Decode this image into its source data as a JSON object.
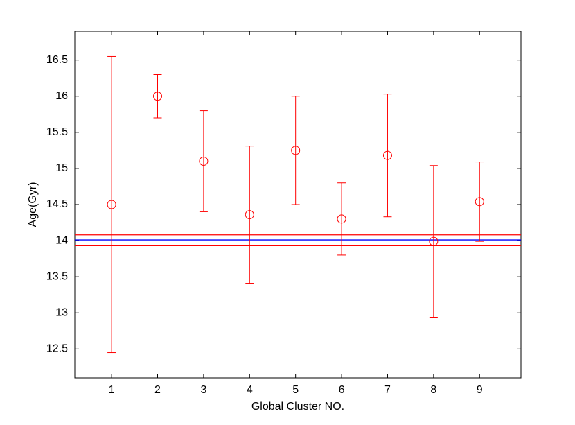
{
  "chart_data": {
    "type": "errorbar",
    "xlabel": "Global Cluster NO.",
    "ylabel": "Age(Gyr)",
    "x": [
      1,
      2,
      3,
      4,
      5,
      6,
      7,
      8,
      9
    ],
    "values": [
      14.5,
      16.0,
      15.1,
      14.36,
      15.25,
      14.3,
      15.18,
      13.99,
      14.54
    ],
    "errors": [
      2.05,
      0.3,
      0.7,
      0.95,
      0.75,
      0.5,
      0.85,
      1.05,
      0.55
    ],
    "color": "#ff0000",
    "marker": "o",
    "hlines": [
      {
        "value": 14.01,
        "color": "#0000ff"
      },
      {
        "value": 14.08,
        "color": "#ff0000"
      },
      {
        "value": 13.93,
        "color": "#ff0000"
      }
    ],
    "xlim": [
      0.2,
      9.9
    ],
    "xticks": [
      1,
      2,
      3,
      4,
      5,
      6,
      7,
      8,
      9
    ],
    "ylim": [
      12.1,
      16.9
    ],
    "yticks": [
      12.5,
      13,
      13.5,
      14,
      14.5,
      15,
      15.5,
      16,
      16.5
    ],
    "grid": false
  }
}
